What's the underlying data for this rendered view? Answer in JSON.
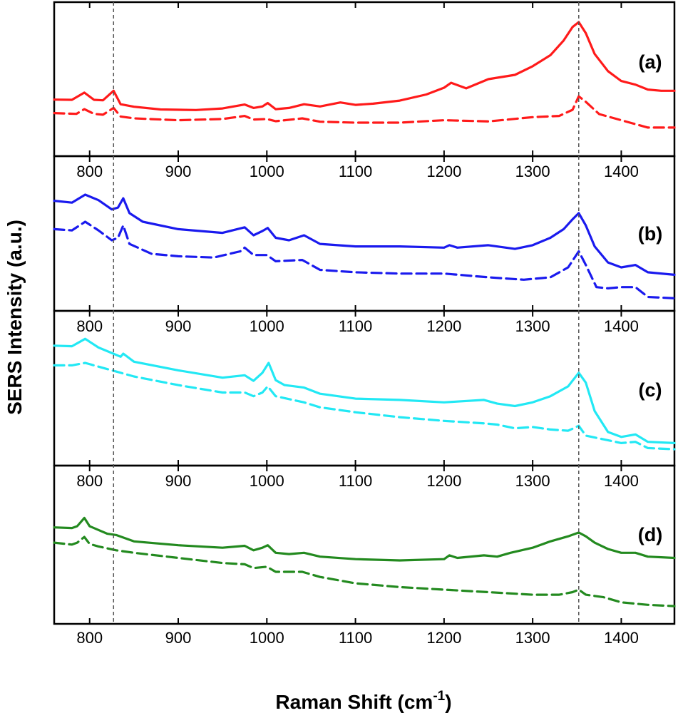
{
  "chart_data": {
    "type": "line",
    "xlabel": "Raman Shift (cm",
    "xlabel_sup": "-1",
    "xlabel_close": ")",
    "ylabel": "SERS Intensity (a.u.)",
    "xlim": [
      760,
      1460
    ],
    "xticks": [
      800,
      900,
      1000,
      1100,
      1200,
      1300,
      1400
    ],
    "reference_lines_x": [
      827,
      1352
    ],
    "grid": false,
    "panels": [
      {
        "label": "(a)",
        "color": "#ff1a1a",
        "ylim": [
          0,
          1
        ],
        "series": [
          {
            "name": "solid",
            "style": "solid",
            "x": [
              760,
              780,
              794,
              805,
              815,
              827,
              835,
              850,
              880,
              920,
              950,
              975,
              985,
              995,
              1001,
              1010,
              1025,
              1042,
              1060,
              1083,
              1100,
              1120,
              1150,
              1180,
              1200,
              1208,
              1225,
              1250,
              1280,
              1300,
              1320,
              1335,
              1345,
              1352,
              1360,
              1370,
              1385,
              1400,
              1416,
              1430,
              1445,
              1460
            ],
            "y": [
              0.368,
              0.366,
              0.425,
              0.366,
              0.362,
              0.44,
              0.33,
              0.31,
              0.288,
              0.283,
              0.296,
              0.328,
              0.3,
              0.312,
              0.34,
              0.29,
              0.3,
              0.33,
              0.312,
              0.345,
              0.325,
              0.335,
              0.36,
              0.41,
              0.465,
              0.505,
              0.46,
              0.535,
              0.57,
              0.64,
              0.73,
              0.85,
              0.96,
              1.0,
              0.91,
              0.74,
              0.6,
              0.52,
              0.49,
              0.45,
              0.44,
              0.44
            ]
          },
          {
            "name": "dashed",
            "style": "dashed",
            "x": [
              760,
              785,
              794,
              805,
              815,
              827,
              835,
              850,
              900,
              950,
              975,
              985,
              1000,
              1010,
              1040,
              1060,
              1100,
              1150,
              1200,
              1250,
              1300,
              1330,
              1345,
              1352,
              1360,
              1375,
              1400,
              1430,
              1460
            ],
            "y": [
              0.258,
              0.252,
              0.29,
              0.252,
              0.245,
              0.3,
              0.23,
              0.215,
              0.2,
              0.21,
              0.235,
              0.205,
              0.21,
              0.192,
              0.215,
              0.188,
              0.18,
              0.18,
              0.2,
              0.19,
              0.225,
              0.235,
              0.285,
              0.395,
              0.35,
              0.25,
              0.2,
              0.14,
              0.14
            ]
          }
        ]
      },
      {
        "label": "(b)",
        "color": "#1a1aee",
        "ylim": [
          0,
          1
        ],
        "series": [
          {
            "name": "solid",
            "style": "solid",
            "x": [
              760,
              780,
              795,
              810,
              825,
              832,
              838,
              845,
              860,
              900,
              950,
              975,
              985,
              995,
              1001,
              1010,
              1025,
              1042,
              1060,
              1100,
              1150,
              1200,
              1206,
              1215,
              1250,
              1280,
              1300,
              1320,
              1335,
              1345,
              1352,
              1360,
              1370,
              1385,
              1400,
              1416,
              1430,
              1460
            ],
            "y": [
              0.8,
              0.785,
              0.85,
              0.805,
              0.73,
              0.745,
              0.82,
              0.7,
              0.63,
              0.57,
              0.54,
              0.585,
              0.52,
              0.555,
              0.58,
              0.5,
              0.48,
              0.52,
              0.45,
              0.43,
              0.43,
              0.42,
              0.44,
              0.42,
              0.44,
              0.41,
              0.44,
              0.5,
              0.57,
              0.65,
              0.7,
              0.6,
              0.43,
              0.3,
              0.26,
              0.28,
              0.22,
              0.2
            ]
          },
          {
            "name": "dashed",
            "style": "dashed",
            "x": [
              760,
              780,
              795,
              810,
              825,
              832,
              838,
              845,
              870,
              900,
              940,
              970,
              975,
              985,
              1000,
              1010,
              1040,
              1060,
              1100,
              1150,
              1200,
              1250,
              1290,
              1320,
              1340,
              1352,
              1360,
              1372,
              1385,
              1400,
              1416,
              1430,
              1460
            ],
            "y": [
              0.57,
              0.56,
              0.63,
              0.56,
              0.48,
              0.5,
              0.6,
              0.45,
              0.37,
              0.35,
              0.34,
              0.39,
              0.42,
              0.36,
              0.36,
              0.31,
              0.32,
              0.24,
              0.22,
              0.21,
              0.21,
              0.18,
              0.16,
              0.18,
              0.26,
              0.39,
              0.28,
              0.1,
              0.09,
              0.1,
              0.1,
              0.02,
              0.01
            ]
          }
        ]
      },
      {
        "label": "(c)",
        "color": "#22e8f4",
        "ylim": [
          0,
          1
        ],
        "series": [
          {
            "name": "solid",
            "style": "solid",
            "x": [
              760,
              780,
              795,
              810,
              825,
              835,
              838,
              850,
              900,
              950,
              975,
              985,
              995,
              1002,
              1010,
              1020,
              1042,
              1060,
              1100,
              1150,
              1200,
              1245,
              1260,
              1280,
              1300,
              1320,
              1340,
              1352,
              1360,
              1370,
              1385,
              1400,
              1416,
              1430,
              1460
            ],
            "y": [
              0.88,
              0.875,
              0.935,
              0.865,
              0.82,
              0.79,
              0.815,
              0.75,
              0.68,
              0.62,
              0.64,
              0.595,
              0.66,
              0.74,
              0.6,
              0.56,
              0.54,
              0.49,
              0.45,
              0.44,
              0.42,
              0.44,
              0.41,
              0.39,
              0.42,
              0.47,
              0.55,
              0.66,
              0.58,
              0.35,
              0.18,
              0.14,
              0.16,
              0.1,
              0.09
            ]
          },
          {
            "name": "dashed",
            "style": "dashed",
            "x": [
              760,
              780,
              795,
              810,
              830,
              850,
              900,
              950,
              975,
              985,
              995,
              1001,
              1010,
              1042,
              1060,
              1100,
              1150,
              1200,
              1245,
              1260,
              1280,
              1300,
              1320,
              1340,
              1352,
              1360,
              1380,
              1400,
              1416,
              1430,
              1460
            ],
            "y": [
              0.72,
              0.72,
              0.74,
              0.71,
              0.67,
              0.63,
              0.56,
              0.5,
              0.5,
              0.47,
              0.5,
              0.55,
              0.47,
              0.42,
              0.38,
              0.34,
              0.3,
              0.27,
              0.25,
              0.24,
              0.21,
              0.22,
              0.2,
              0.19,
              0.23,
              0.15,
              0.12,
              0.09,
              0.1,
              0.05,
              0.04
            ]
          }
        ]
      },
      {
        "label": "(d)",
        "color": "#238a1f",
        "ylim": [
          0,
          1
        ],
        "series": [
          {
            "name": "solid",
            "style": "solid",
            "x": [
              760,
              780,
              786,
              794,
              800,
              810,
              820,
              830,
              850,
              900,
              950,
              975,
              985,
              995,
              1001,
              1010,
              1025,
              1042,
              1060,
              1100,
              1150,
              1200,
              1206,
              1215,
              1245,
              1260,
              1275,
              1300,
              1320,
              1340,
              1352,
              1360,
              1370,
              1385,
              1400,
              1416,
              1430,
              1460
            ],
            "y": [
              0.67,
              0.665,
              0.68,
              0.745,
              0.68,
              0.65,
              0.62,
              0.61,
              0.56,
              0.53,
              0.51,
              0.525,
              0.49,
              0.51,
              0.53,
              0.47,
              0.46,
              0.47,
              0.44,
              0.42,
              0.41,
              0.42,
              0.45,
              0.43,
              0.45,
              0.44,
              0.47,
              0.51,
              0.56,
              0.6,
              0.63,
              0.6,
              0.55,
              0.5,
              0.47,
              0.47,
              0.44,
              0.43
            ]
          },
          {
            "name": "dashed",
            "style": "dashed",
            "x": [
              760,
              780,
              786,
              794,
              800,
              810,
              830,
              850,
              900,
              950,
              975,
              985,
              1000,
              1010,
              1040,
              1060,
              1100,
              1150,
              1200,
              1250,
              1300,
              1330,
              1345,
              1352,
              1360,
              1380,
              1400,
              1430,
              1460
            ],
            "y": [
              0.55,
              0.535,
              0.55,
              0.595,
              0.54,
              0.52,
              0.49,
              0.47,
              0.43,
              0.39,
              0.38,
              0.35,
              0.36,
              0.32,
              0.32,
              0.28,
              0.23,
              0.2,
              0.18,
              0.16,
              0.14,
              0.14,
              0.16,
              0.18,
              0.14,
              0.12,
              0.08,
              0.06,
              0.05
            ]
          }
        ]
      }
    ]
  }
}
